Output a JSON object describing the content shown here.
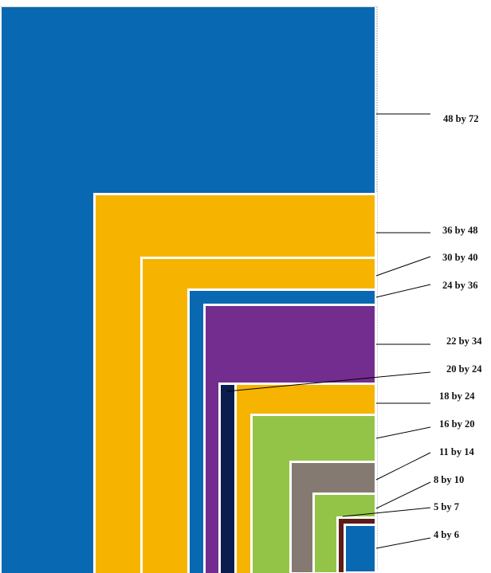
{
  "sizes": [
    {
      "label": "48 by 72",
      "color": "#0868b2"
    },
    {
      "label": "36 by 48",
      "color": "#f6b400"
    },
    {
      "label": "30 by 40",
      "color": "#f6b400"
    },
    {
      "label": "24 by 36",
      "color": "#0868b2"
    },
    {
      "label": "22 by 34",
      "color": "#722d8e"
    },
    {
      "label": "20 by 24",
      "color": "#0a1d4c"
    },
    {
      "label": "18 by 24",
      "color": "#f6b400"
    },
    {
      "label": "16 by 20",
      "color": "#93c447"
    },
    {
      "label": "11 by 14",
      "color": "#857a72"
    },
    {
      "label": "8 by 10",
      "color": "#93c447"
    },
    {
      "label": "5 by 7",
      "color": "#5c1d17"
    },
    {
      "label": "4 by 6",
      "color": "#0868b2"
    }
  ]
}
